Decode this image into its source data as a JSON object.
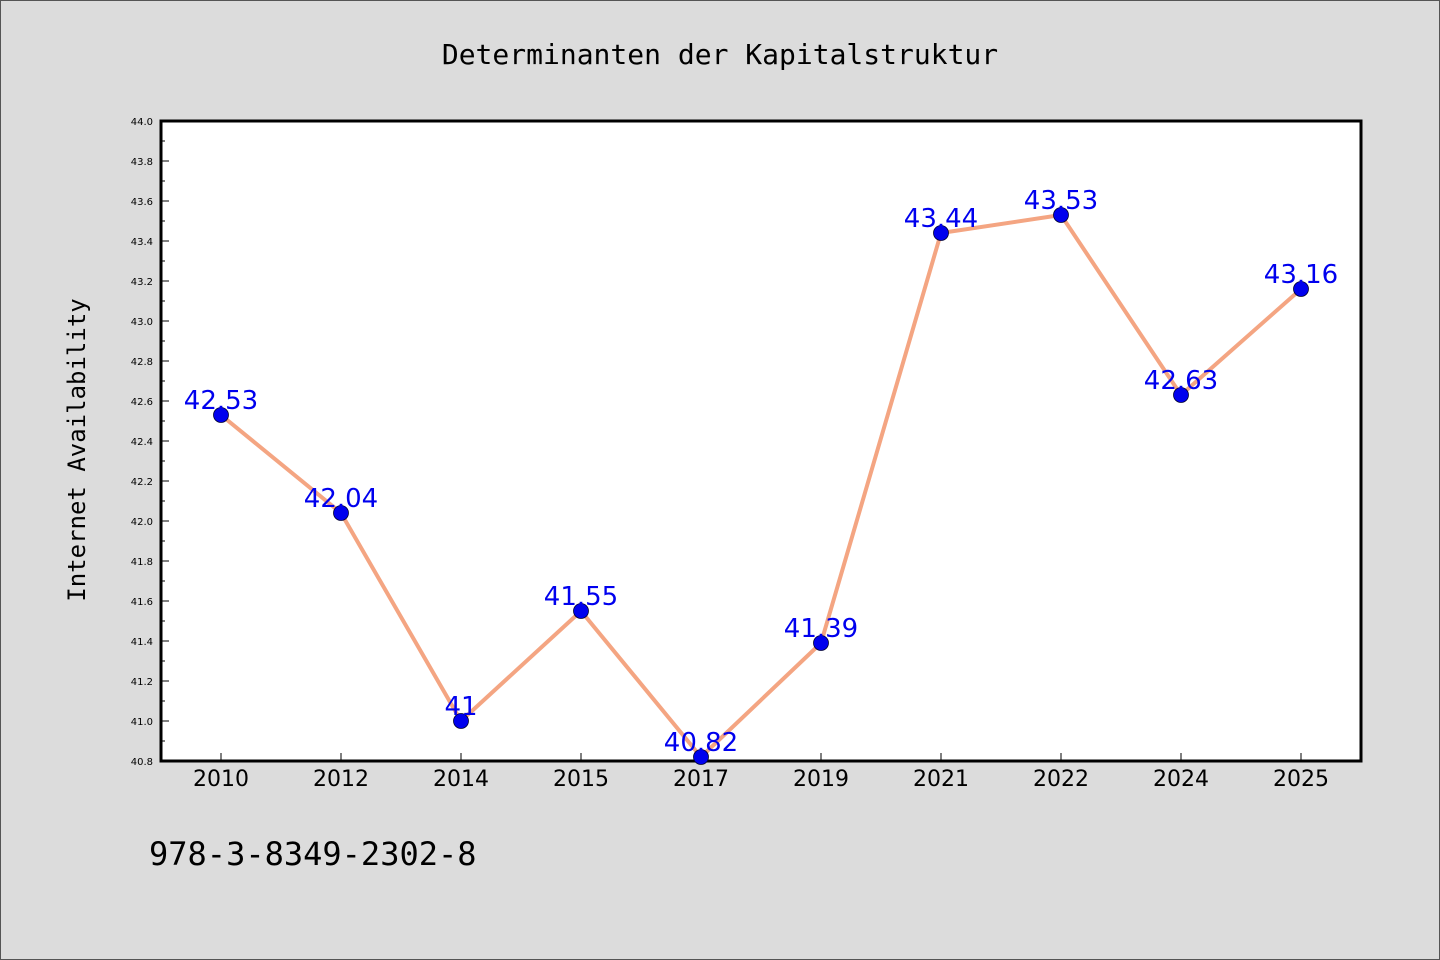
{
  "chart_data": {
    "type": "line",
    "title": "Determinanten der Kapitalstruktur",
    "xlabel": "",
    "ylabel": "Internet Availability",
    "categories": [
      "2010",
      "2012",
      "2014",
      "2015",
      "2017",
      "2019",
      "2021",
      "2022",
      "2024",
      "2025"
    ],
    "series": [
      {
        "values": [
          42.53,
          42.04,
          41.0,
          41.55,
          40.82,
          41.39,
          43.44,
          43.53,
          42.63,
          43.16
        ],
        "labels": [
          "42.53",
          "42.04",
          "41",
          "41.55",
          "40.82",
          "41.39",
          "43.44",
          "43.53",
          "42.63",
          "43.16"
        ],
        "line_color": "#f4a582",
        "marker_color": "#0000ee",
        "label_color": "#0000ee"
      }
    ],
    "ylim": [
      40.8,
      44.0
    ],
    "y_ticks": [
      "40.8",
      "41.0",
      "41.2",
      "41.4",
      "41.6",
      "41.8",
      "42.0",
      "42.2",
      "42.4",
      "42.6",
      "42.8",
      "43.0",
      "43.2",
      "43.4",
      "43.6",
      "43.8",
      "44.0"
    ],
    "grid": false,
    "background": "#ffffff",
    "figure_background": "#dcdcdc"
  },
  "annotation": "978-3-8349-2302-8"
}
